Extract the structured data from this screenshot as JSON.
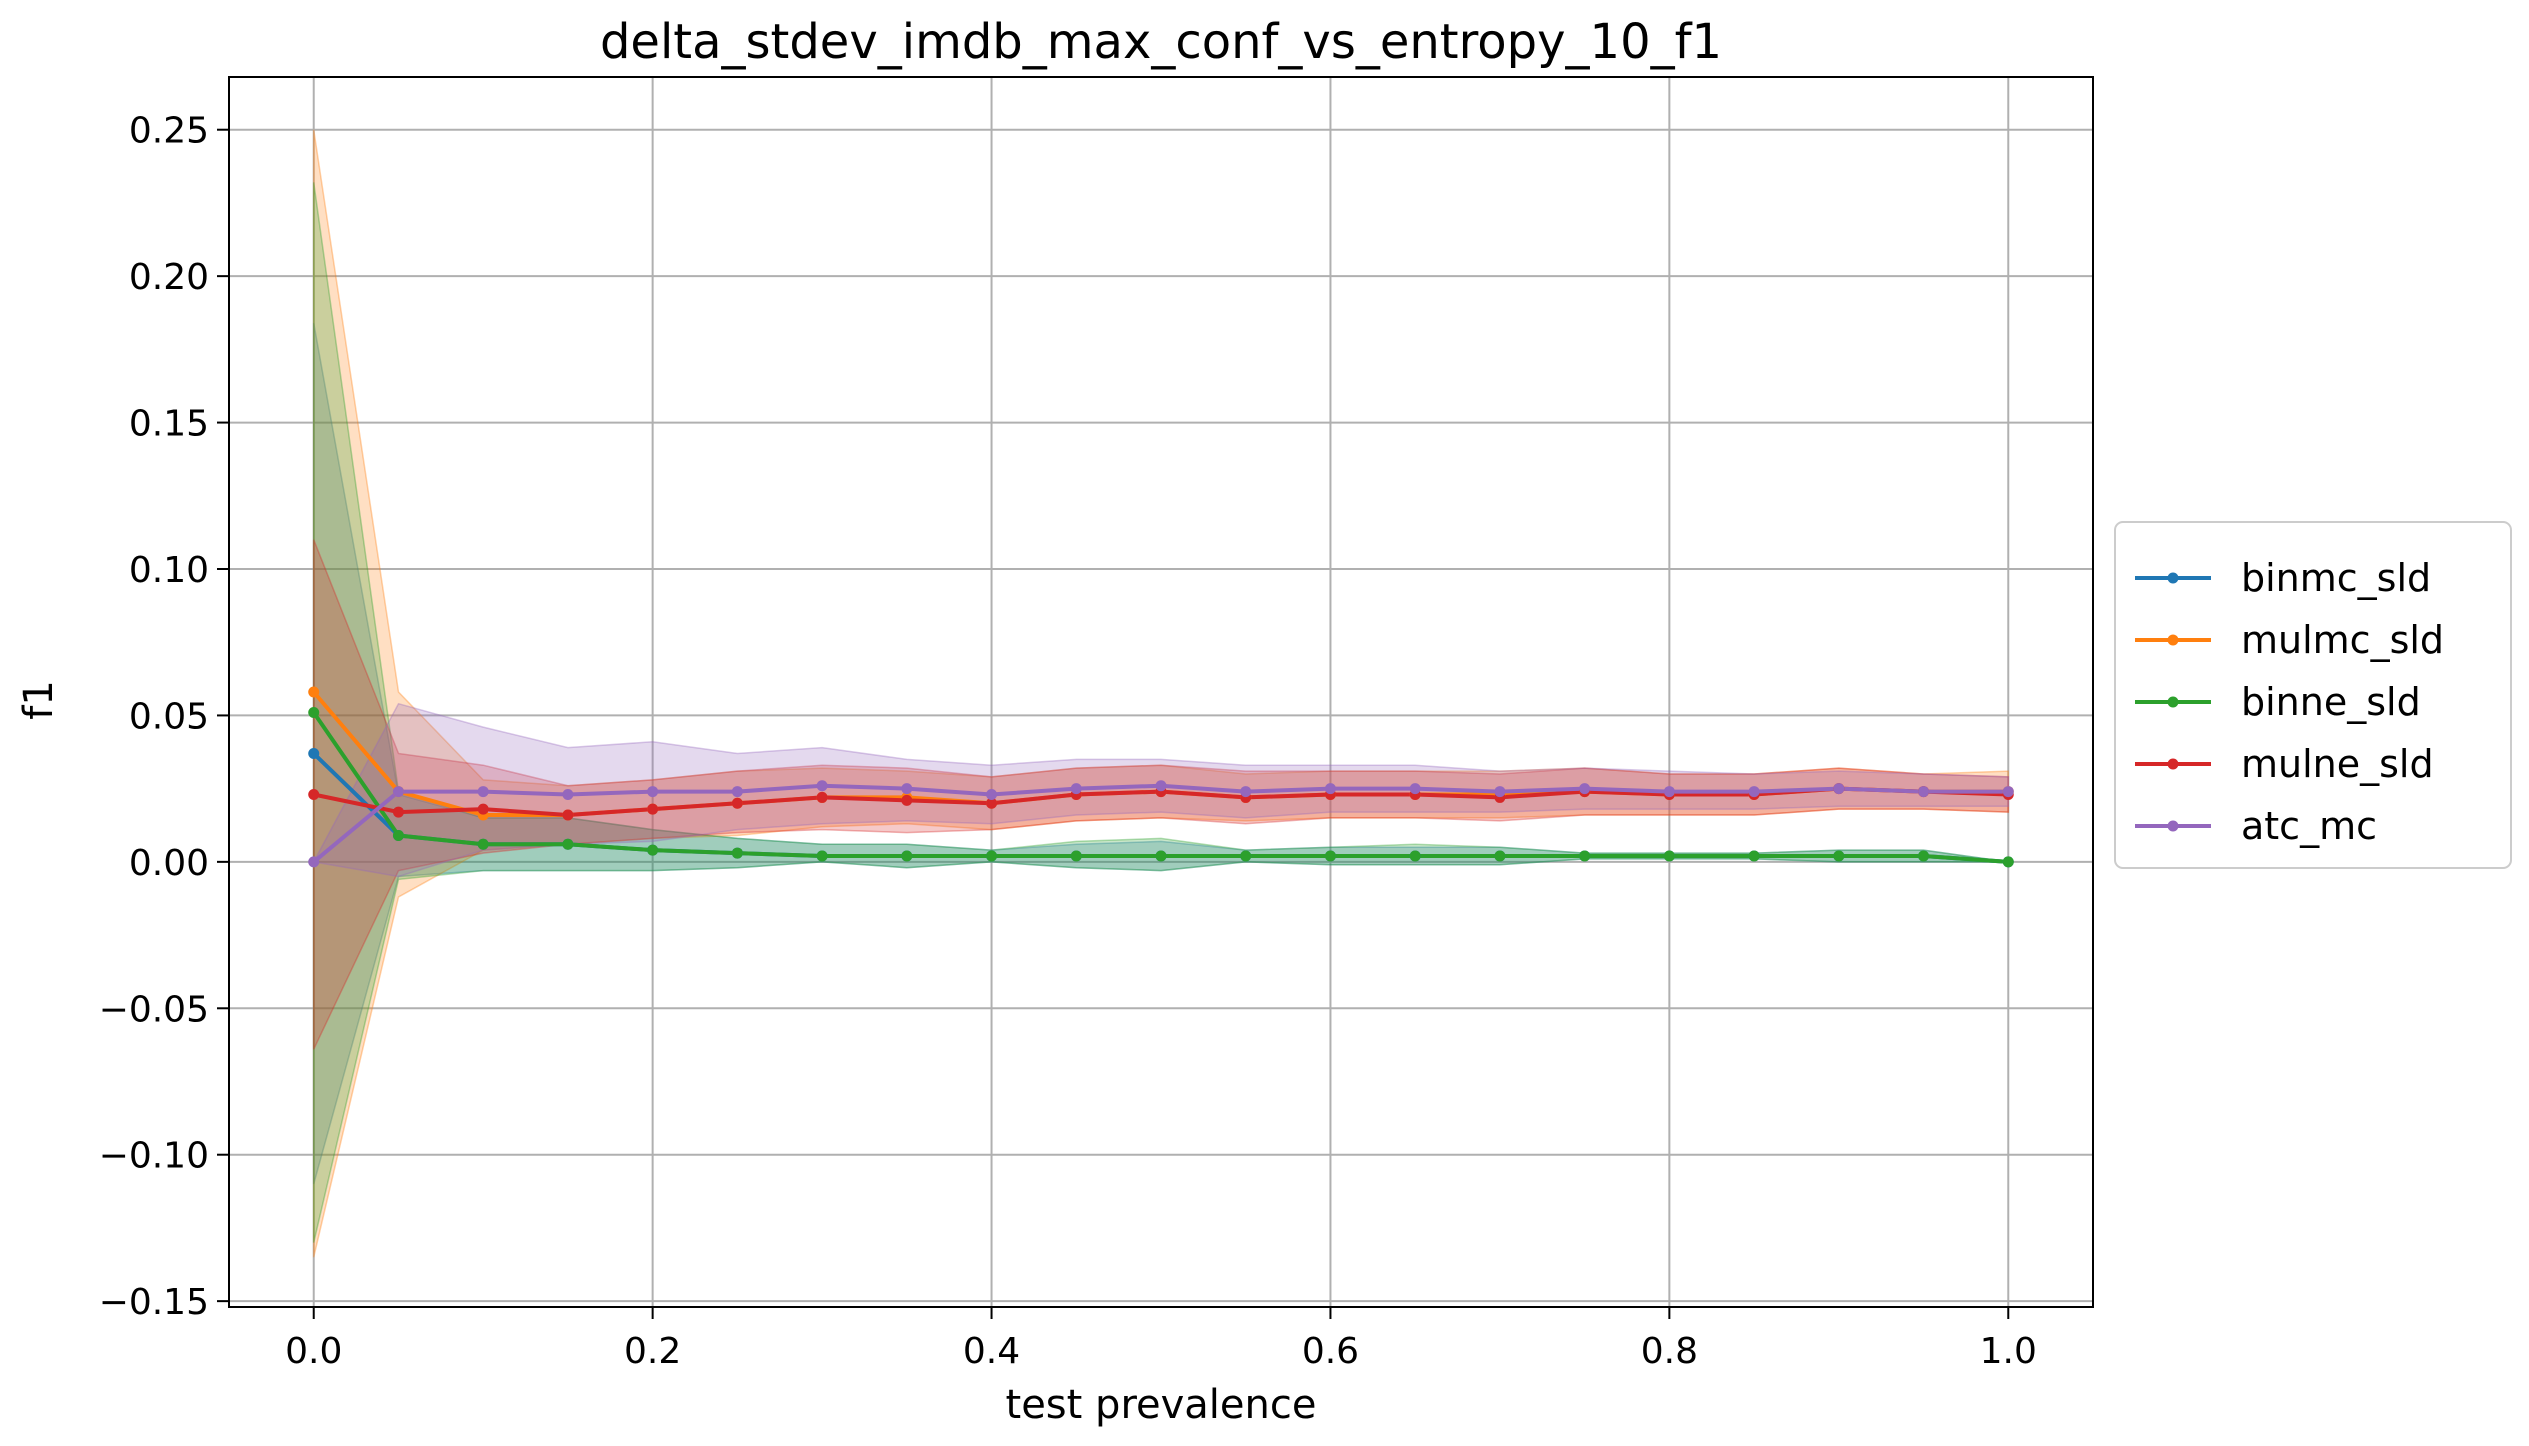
{
  "chart_data": {
    "type": "line",
    "title": "delta_stdev_imdb_max_conf_vs_entropy_10_f1",
    "xlabel": "test prevalence",
    "ylabel": "f1",
    "xlim": [
      -0.05,
      1.05
    ],
    "ylim": [
      -0.152,
      0.268
    ],
    "xticks": [
      0.0,
      0.2,
      0.4,
      0.6,
      0.8,
      1.0
    ],
    "xtick_labels": [
      "0.0",
      "0.2",
      "0.4",
      "0.6",
      "0.8",
      "1.0"
    ],
    "yticks": [
      -0.15,
      -0.1,
      -0.05,
      0.0,
      0.05,
      0.1,
      0.15,
      0.2,
      0.25
    ],
    "ytick_labels": [
      "−0.15",
      "−0.10",
      "−0.05",
      "0.00",
      "0.05",
      "0.10",
      "0.15",
      "0.20",
      "0.25"
    ],
    "grid": true,
    "legend_position": "center-right-outside",
    "x": [
      0.0,
      0.05,
      0.1,
      0.15,
      0.2,
      0.25,
      0.3,
      0.35,
      0.4,
      0.45,
      0.5,
      0.55,
      0.6,
      0.65,
      0.7,
      0.75,
      0.8,
      0.85,
      0.9,
      0.95,
      1.0
    ],
    "series": [
      {
        "name": "binmc_sld",
        "color": "#1f77b4",
        "values": [
          0.037,
          0.009,
          0.006,
          0.006,
          0.004,
          0.003,
          0.002,
          0.002,
          0.002,
          0.002,
          0.002,
          0.002,
          0.002,
          0.002,
          0.002,
          0.002,
          0.002,
          0.002,
          0.002,
          0.002,
          0.0
        ],
        "lower": [
          -0.11,
          -0.005,
          -0.003,
          -0.003,
          -0.003,
          -0.002,
          0.0,
          -0.002,
          0.0,
          -0.002,
          -0.003,
          0.0,
          -0.001,
          -0.001,
          -0.001,
          0.001,
          0.001,
          0.001,
          0.0,
          0.0,
          0.0
        ],
        "upper": [
          0.184,
          0.023,
          0.015,
          0.015,
          0.011,
          0.008,
          0.006,
          0.006,
          0.004,
          0.006,
          0.007,
          0.004,
          0.005,
          0.005,
          0.005,
          0.003,
          0.003,
          0.003,
          0.004,
          0.004,
          0.0
        ]
      },
      {
        "name": "mulmc_sld",
        "color": "#ff7f0e",
        "values": [
          0.058,
          0.024,
          0.016,
          0.016,
          0.018,
          0.02,
          0.022,
          0.022,
          0.02,
          0.023,
          0.024,
          0.022,
          0.023,
          0.023,
          0.023,
          0.024,
          0.023,
          0.023,
          0.025,
          0.024,
          0.024
        ],
        "lower": [
          -0.135,
          -0.012,
          0.004,
          0.006,
          0.008,
          0.009,
          0.012,
          0.013,
          0.011,
          0.014,
          0.015,
          0.014,
          0.015,
          0.015,
          0.015,
          0.016,
          0.016,
          0.016,
          0.018,
          0.018,
          0.017
        ],
        "upper": [
          0.25,
          0.058,
          0.028,
          0.026,
          0.028,
          0.031,
          0.032,
          0.031,
          0.029,
          0.032,
          0.033,
          0.03,
          0.031,
          0.031,
          0.031,
          0.032,
          0.03,
          0.03,
          0.032,
          0.03,
          0.031
        ]
      },
      {
        "name": "binne_sld",
        "color": "#2ca02c",
        "values": [
          0.051,
          0.009,
          0.006,
          0.006,
          0.004,
          0.003,
          0.002,
          0.002,
          0.002,
          0.002,
          0.002,
          0.002,
          0.002,
          0.002,
          0.002,
          0.002,
          0.002,
          0.002,
          0.002,
          0.002,
          0.0
        ],
        "lower": [
          -0.13,
          -0.006,
          -0.003,
          -0.003,
          -0.003,
          -0.002,
          0.0,
          -0.002,
          0.0,
          -0.002,
          -0.003,
          0.0,
          -0.001,
          -0.001,
          -0.001,
          0.001,
          0.001,
          0.001,
          0.0,
          0.0,
          0.0
        ],
        "upper": [
          0.232,
          0.024,
          0.015,
          0.015,
          0.011,
          0.008,
          0.006,
          0.006,
          0.004,
          0.007,
          0.008,
          0.004,
          0.005,
          0.006,
          0.005,
          0.003,
          0.003,
          0.003,
          0.004,
          0.004,
          0.0
        ]
      },
      {
        "name": "mulne_sld",
        "color": "#d62728",
        "values": [
          0.023,
          0.017,
          0.018,
          0.016,
          0.018,
          0.02,
          0.022,
          0.021,
          0.02,
          0.023,
          0.024,
          0.022,
          0.023,
          0.023,
          0.022,
          0.024,
          0.023,
          0.023,
          0.025,
          0.024,
          0.023
        ],
        "lower": [
          -0.064,
          -0.003,
          0.003,
          0.006,
          0.008,
          0.01,
          0.011,
          0.01,
          0.011,
          0.014,
          0.015,
          0.013,
          0.015,
          0.015,
          0.014,
          0.016,
          0.016,
          0.016,
          0.018,
          0.018,
          0.017
        ],
        "upper": [
          0.11,
          0.037,
          0.033,
          0.026,
          0.028,
          0.031,
          0.033,
          0.032,
          0.029,
          0.032,
          0.033,
          0.031,
          0.031,
          0.031,
          0.03,
          0.032,
          0.03,
          0.03,
          0.032,
          0.03,
          0.029
        ]
      },
      {
        "name": "atc_mc",
        "color": "#9467bd",
        "values": [
          0.0,
          0.024,
          0.024,
          0.023,
          0.024,
          0.024,
          0.026,
          0.025,
          0.023,
          0.025,
          0.026,
          0.024,
          0.025,
          0.025,
          0.024,
          0.025,
          0.024,
          0.024,
          0.025,
          0.024,
          0.024
        ],
        "lower": [
          0.0,
          -0.005,
          0.004,
          0.006,
          0.007,
          0.011,
          0.013,
          0.014,
          0.013,
          0.016,
          0.017,
          0.015,
          0.017,
          0.017,
          0.017,
          0.018,
          0.018,
          0.018,
          0.019,
          0.019,
          0.019
        ],
        "upper": [
          0.0,
          0.054,
          0.046,
          0.039,
          0.041,
          0.037,
          0.039,
          0.035,
          0.033,
          0.035,
          0.035,
          0.033,
          0.033,
          0.033,
          0.031,
          0.032,
          0.031,
          0.03,
          0.031,
          0.03,
          0.029
        ]
      }
    ]
  }
}
